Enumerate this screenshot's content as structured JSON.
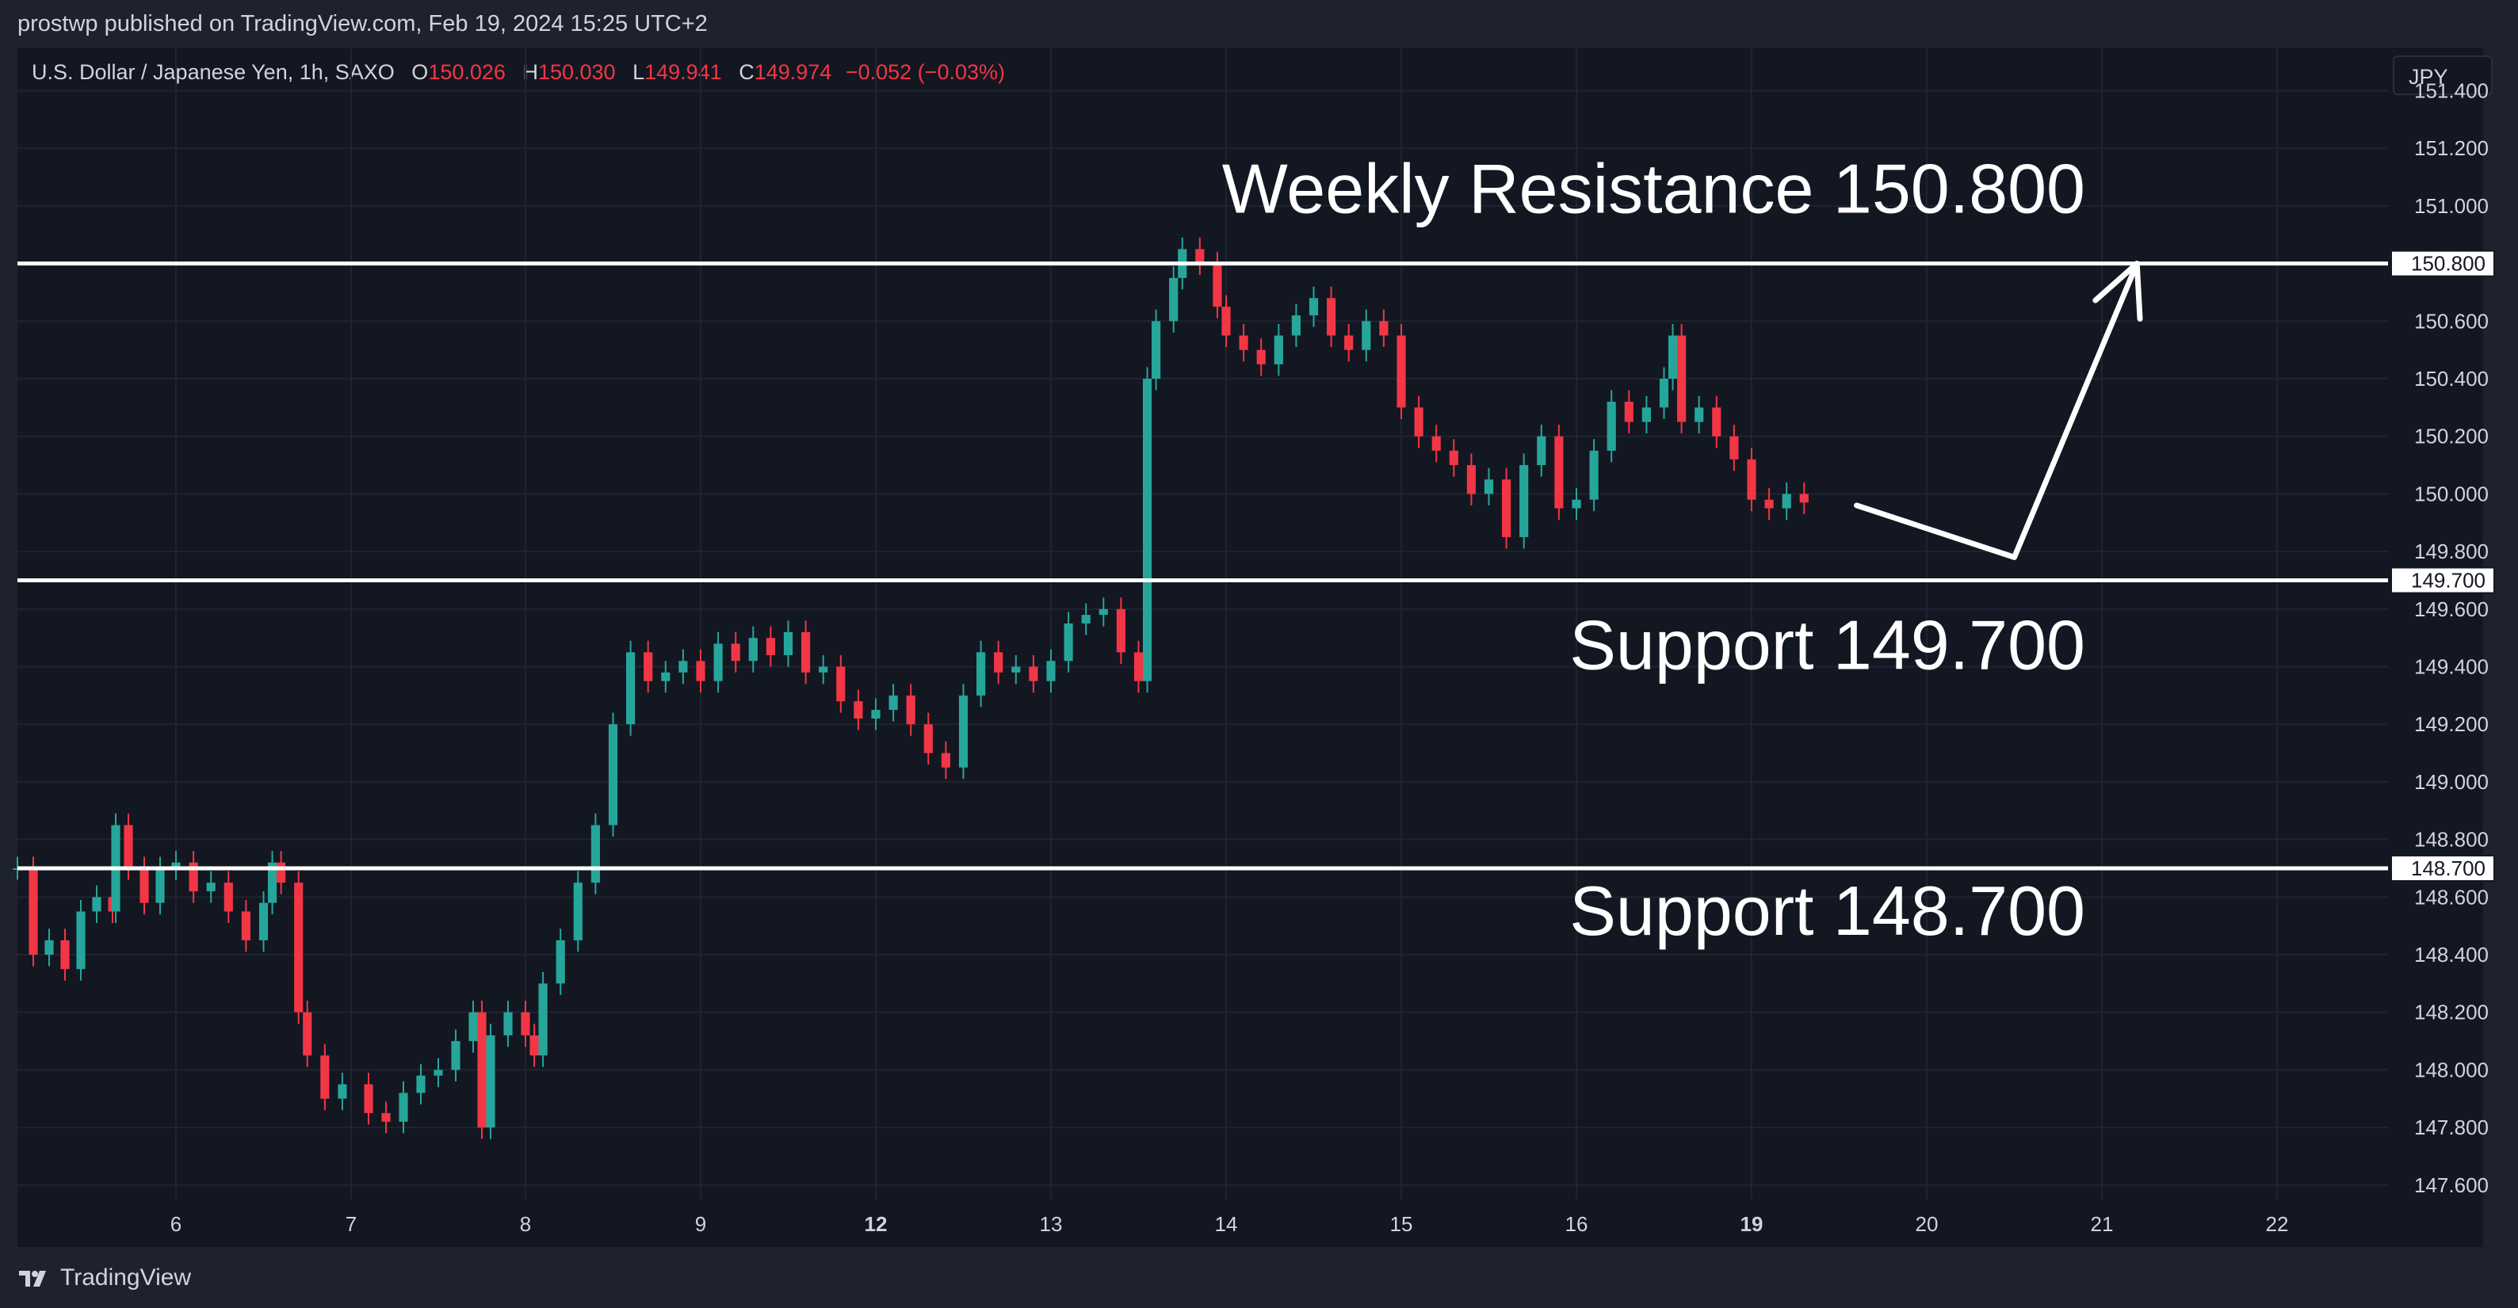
{
  "header": {
    "published": "prostwp published on TradingView.com, Feb 19, 2024 15:25 UTC+2"
  },
  "legend": {
    "symbol": "U.S. Dollar / Japanese Yen, 1h, SAXO",
    "o_label": "O",
    "o": "150.026",
    "h_label": "H",
    "h": "150.030",
    "l_label": "L",
    "l": "149.941",
    "c_label": "C",
    "c": "149.974",
    "change": "−0.052 (−0.03%)"
  },
  "currency": "JPY",
  "footer": {
    "brand": "TradingView"
  },
  "colors": {
    "background": "#131722",
    "bullish": "#26a69a",
    "bearish": "#f23645",
    "levels": "#ffffff",
    "text": "#d1d4dc"
  },
  "chart_data": {
    "type": "candlestick",
    "symbol": "USDJPY",
    "interval": "1h",
    "x_ticks": [
      "6",
      "7",
      "8",
      "9",
      "12",
      "13",
      "14",
      "15",
      "16",
      "19",
      "20",
      "21",
      "22"
    ],
    "y_ticks": [
      "151.400",
      "151.200",
      "151.000",
      "150.600",
      "150.400",
      "150.200",
      "150.000",
      "149.800",
      "149.600",
      "149.400",
      "149.200",
      "149.000",
      "148.800",
      "148.600",
      "148.400",
      "148.200",
      "148.000",
      "147.800",
      "147.600"
    ],
    "ylim": [
      147.55,
      151.55
    ],
    "levels": [
      {
        "label": "Weekly Resistance 150.800",
        "tag": "150.800",
        "value": 150.8
      },
      {
        "label": "Support 149.700",
        "tag": "149.700",
        "value": 149.7
      },
      {
        "label": "Support 148.700",
        "tag": "148.700",
        "value": 148.7
      }
    ],
    "projection": [
      {
        "x": 19.6,
        "y": 149.96
      },
      {
        "x": 20.5,
        "y": 149.78
      },
      {
        "x": 21.2,
        "y": 150.8
      }
    ],
    "session_closes": [
      {
        "x": 5.0,
        "y": 148.7
      },
      {
        "x": 5.1,
        "y": 148.4
      },
      {
        "x": 5.2,
        "y": 148.45
      },
      {
        "x": 5.3,
        "y": 148.35
      },
      {
        "x": 5.4,
        "y": 148.55
      },
      {
        "x": 5.5,
        "y": 148.6
      },
      {
        "x": 5.6,
        "y": 148.55
      },
      {
        "x": 5.62,
        "y": 148.85
      },
      {
        "x": 5.7,
        "y": 148.7
      },
      {
        "x": 5.8,
        "y": 148.58
      },
      {
        "x": 5.9,
        "y": 148.7
      },
      {
        "x": 6.0,
        "y": 148.72
      },
      {
        "x": 6.1,
        "y": 148.62
      },
      {
        "x": 6.2,
        "y": 148.65
      },
      {
        "x": 6.3,
        "y": 148.55
      },
      {
        "x": 6.4,
        "y": 148.45
      },
      {
        "x": 6.5,
        "y": 148.58
      },
      {
        "x": 6.55,
        "y": 148.72
      },
      {
        "x": 6.6,
        "y": 148.65
      },
      {
        "x": 6.7,
        "y": 148.2
      },
      {
        "x": 6.75,
        "y": 148.05
      },
      {
        "x": 6.85,
        "y": 147.9
      },
      {
        "x": 6.95,
        "y": 147.95
      },
      {
        "x": 7.1,
        "y": 147.85
      },
      {
        "x": 7.2,
        "y": 147.82
      },
      {
        "x": 7.3,
        "y": 147.92
      },
      {
        "x": 7.4,
        "y": 147.98
      },
      {
        "x": 7.5,
        "y": 148.0
      },
      {
        "x": 7.6,
        "y": 148.1
      },
      {
        "x": 7.7,
        "y": 148.2
      },
      {
        "x": 7.75,
        "y": 147.8
      },
      {
        "x": 7.8,
        "y": 148.12
      },
      {
        "x": 7.9,
        "y": 148.2
      },
      {
        "x": 8.0,
        "y": 148.12
      },
      {
        "x": 8.05,
        "y": 148.05
      },
      {
        "x": 8.1,
        "y": 148.3
      },
      {
        "x": 8.2,
        "y": 148.45
      },
      {
        "x": 8.3,
        "y": 148.65
      },
      {
        "x": 8.4,
        "y": 148.85
      },
      {
        "x": 8.5,
        "y": 149.2
      },
      {
        "x": 8.6,
        "y": 149.45
      },
      {
        "x": 8.7,
        "y": 149.35
      },
      {
        "x": 8.8,
        "y": 149.38
      },
      {
        "x": 8.9,
        "y": 149.42
      },
      {
        "x": 9.0,
        "y": 149.35
      },
      {
        "x": 9.1,
        "y": 149.48
      },
      {
        "x": 9.2,
        "y": 149.42
      },
      {
        "x": 9.3,
        "y": 149.5
      },
      {
        "x": 9.4,
        "y": 149.44
      },
      {
        "x": 9.5,
        "y": 149.52
      },
      {
        "x": 9.6,
        "y": 149.38
      },
      {
        "x": 9.7,
        "y": 149.4
      },
      {
        "x": 9.8,
        "y": 149.28
      },
      {
        "x": 9.9,
        "y": 149.22
      },
      {
        "x": 10.0,
        "y": 149.25
      },
      {
        "x": 10.1,
        "y": 149.3
      },
      {
        "x": 10.2,
        "y": 149.2
      },
      {
        "x": 10.3,
        "y": 149.1
      },
      {
        "x": 10.4,
        "y": 149.05
      },
      {
        "x": 10.5,
        "y": 149.3
      },
      {
        "x": 10.6,
        "y": 149.45
      },
      {
        "x": 10.7,
        "y": 149.38
      },
      {
        "x": 10.8,
        "y": 149.4
      },
      {
        "x": 10.9,
        "y": 149.35
      },
      {
        "x": 11.0,
        "y": 149.42
      },
      {
        "x": 11.1,
        "y": 149.55
      },
      {
        "x": 11.2,
        "y": 149.58
      },
      {
        "x": 11.3,
        "y": 149.6
      },
      {
        "x": 11.4,
        "y": 149.45
      },
      {
        "x": 11.5,
        "y": 149.35
      },
      {
        "x": 11.55,
        "y": 150.4
      },
      {
        "x": 11.6,
        "y": 150.6
      },
      {
        "x": 11.7,
        "y": 150.75
      },
      {
        "x": 11.75,
        "y": 150.85
      },
      {
        "x": 11.85,
        "y": 150.8
      },
      {
        "x": 11.95,
        "y": 150.65
      },
      {
        "x": 12.0,
        "y": 150.55
      },
      {
        "x": 12.1,
        "y": 150.5
      },
      {
        "x": 12.2,
        "y": 150.45
      },
      {
        "x": 12.3,
        "y": 150.55
      },
      {
        "x": 12.4,
        "y": 150.62
      },
      {
        "x": 12.5,
        "y": 150.68
      },
      {
        "x": 12.6,
        "y": 150.55
      },
      {
        "x": 12.7,
        "y": 150.5
      },
      {
        "x": 12.8,
        "y": 150.6
      },
      {
        "x": 12.9,
        "y": 150.55
      },
      {
        "x": 13.0,
        "y": 150.3
      },
      {
        "x": 13.1,
        "y": 150.2
      },
      {
        "x": 13.2,
        "y": 150.15
      },
      {
        "x": 13.3,
        "y": 150.1
      },
      {
        "x": 13.4,
        "y": 150.0
      },
      {
        "x": 13.5,
        "y": 150.05
      },
      {
        "x": 13.6,
        "y": 149.85
      },
      {
        "x": 13.7,
        "y": 150.1
      },
      {
        "x": 13.8,
        "y": 150.2
      },
      {
        "x": 13.9,
        "y": 149.95
      },
      {
        "x": 14.0,
        "y": 149.98
      },
      {
        "x": 14.1,
        "y": 150.15
      },
      {
        "x": 14.2,
        "y": 150.32
      },
      {
        "x": 14.3,
        "y": 150.25
      },
      {
        "x": 14.4,
        "y": 150.3
      },
      {
        "x": 14.5,
        "y": 150.4
      },
      {
        "x": 14.55,
        "y": 150.55
      },
      {
        "x": 14.6,
        "y": 150.25
      },
      {
        "x": 14.7,
        "y": 150.3
      },
      {
        "x": 14.8,
        "y": 150.2
      },
      {
        "x": 14.9,
        "y": 150.12
      },
      {
        "x": 15.0,
        "y": 149.98
      },
      {
        "x": 15.1,
        "y": 149.95
      },
      {
        "x": 15.2,
        "y": 150.0
      },
      {
        "x": 15.3,
        "y": 149.97
      }
    ]
  }
}
